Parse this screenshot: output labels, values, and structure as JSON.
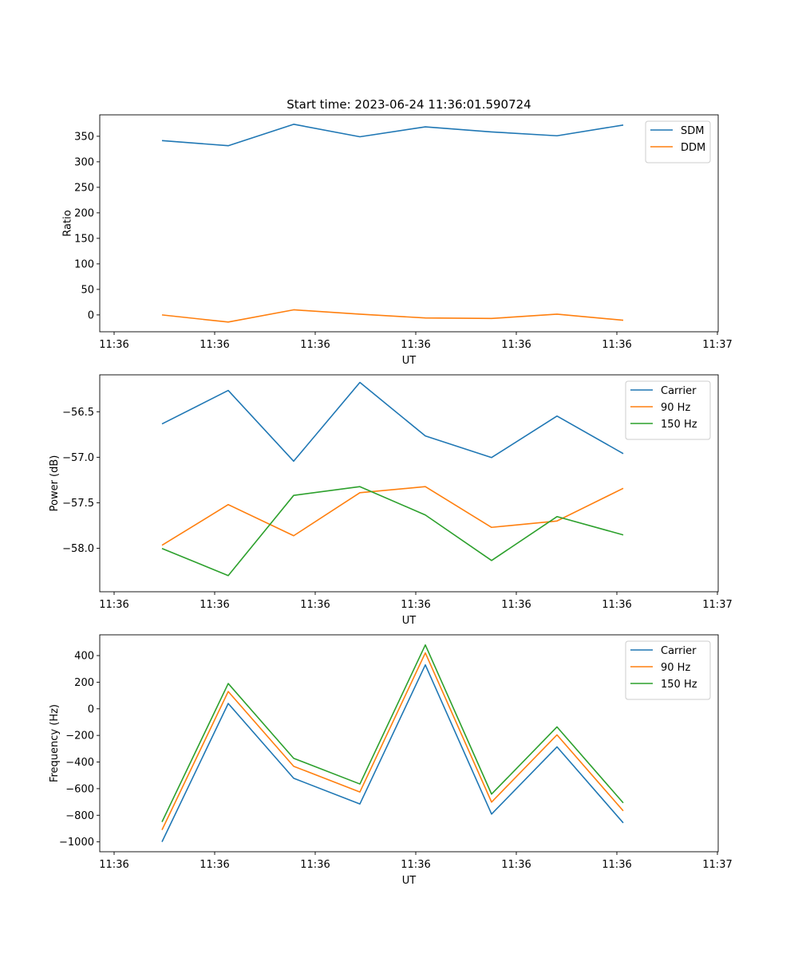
{
  "figure": {
    "title": "Start time: 2023-06-24 11:36:01.590724"
  },
  "chart_data": [
    {
      "type": "line",
      "title": "Start time: 2023-06-24 11:36:01.590724",
      "xlabel": "UT",
      "ylabel": "Ratio",
      "x_tick_labels": [
        "11:36",
        "11:36",
        "11:36",
        "11:36",
        "11:36",
        "11:36",
        "11:37"
      ],
      "y_ticks": [
        0,
        50,
        100,
        150,
        200,
        250,
        300,
        350
      ],
      "y_tick_labels": [
        "0",
        "50",
        "100",
        "150",
        "200",
        "250",
        "300",
        "350"
      ],
      "ylim": [
        -33,
        392
      ],
      "legend_position": "top-right",
      "grid": false,
      "series": [
        {
          "name": "SDM",
          "color": "#1f77b4",
          "values": [
            341.5,
            331.5,
            373.5,
            349.0,
            368.5,
            358.5,
            351.0,
            372.0
          ]
        },
        {
          "name": "DDM",
          "color": "#ff7f0e",
          "values": [
            0.0,
            -14.0,
            10.0,
            1.5,
            -6.0,
            -7.0,
            1.5,
            -10.5
          ]
        }
      ]
    },
    {
      "type": "line",
      "xlabel": "UT",
      "ylabel": "Power (dB)",
      "x_tick_labels": [
        "11:36",
        "11:36",
        "11:36",
        "11:36",
        "11:36",
        "11:36",
        "11:37"
      ],
      "y_ticks": [
        -58.0,
        -57.5,
        -57.0,
        -56.5
      ],
      "y_tick_labels": [
        "−58.0",
        "−57.5",
        "−57.0",
        "−56.5"
      ],
      "ylim": [
        -58.4774,
        -56.0944
      ],
      "legend_position": "top-right",
      "grid": false,
      "series": [
        {
          "name": "Carrier",
          "color": "#1f77b4",
          "values": [
            -56.634,
            -56.266,
            -57.043,
            -56.178,
            -56.766,
            -57.003,
            -56.547,
            -56.96
          ]
        },
        {
          "name": "90 Hz",
          "color": "#ff7f0e",
          "values": [
            -57.967,
            -57.52,
            -57.862,
            -57.389,
            -57.323,
            -57.77,
            -57.7,
            -57.341
          ]
        },
        {
          "name": "150 Hz",
          "color": "#2ca02c",
          "values": [
            -58.002,
            -58.3,
            -57.419,
            -57.323,
            -57.634,
            -58.134,
            -57.652,
            -57.853
          ]
        }
      ]
    },
    {
      "type": "line",
      "xlabel": "UT",
      "ylabel": "Frequency (Hz)",
      "x_tick_labels": [
        "11:36",
        "11:36",
        "11:36",
        "11:36",
        "11:36",
        "11:36",
        "11:37"
      ],
      "y_ticks": [
        -1000,
        -800,
        -600,
        -400,
        -200,
        0,
        200,
        400
      ],
      "y_tick_labels": [
        "−1000",
        "−800",
        "−600",
        "−400",
        "−200",
        "0",
        "200",
        "400"
      ],
      "ylim": [
        -1074,
        556
      ],
      "legend_position": "top-right",
      "grid": false,
      "series": [
        {
          "name": "Carrier",
          "color": "#1f77b4",
          "values": [
            -1000,
            40,
            -522,
            -715,
            330,
            -791,
            -286,
            -857
          ]
        },
        {
          "name": "90 Hz",
          "color": "#ff7f0e",
          "values": [
            -910,
            130,
            -432,
            -625,
            420,
            -701,
            -196,
            -767
          ]
        },
        {
          "name": "150 Hz",
          "color": "#2ca02c",
          "values": [
            -850,
            190,
            -372,
            -565,
            480,
            -641,
            -136,
            -707
          ]
        }
      ]
    }
  ]
}
